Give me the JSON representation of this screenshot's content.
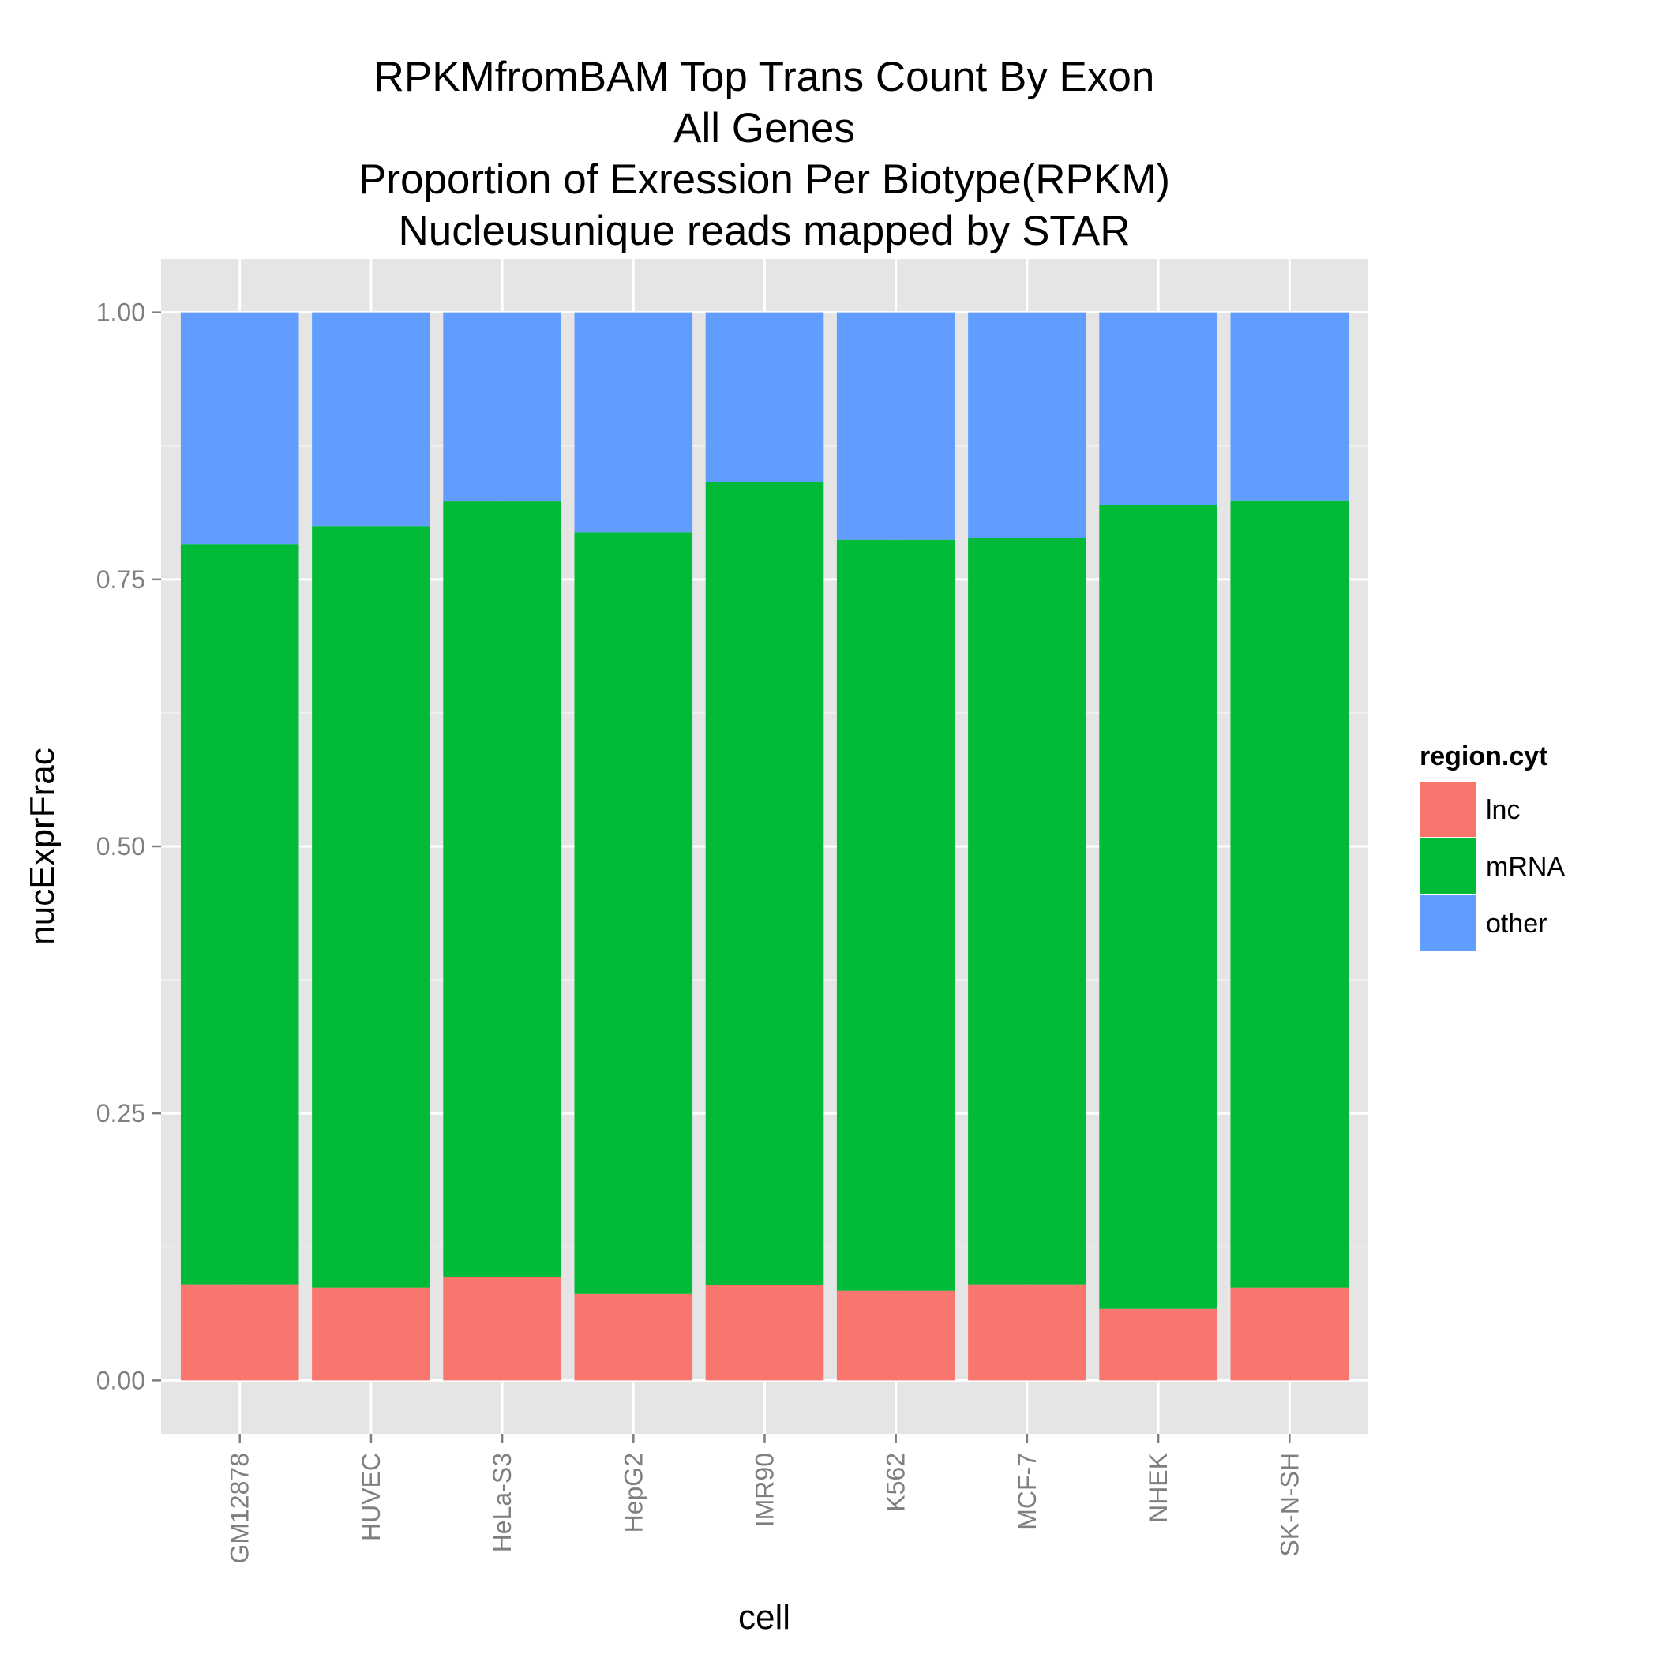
{
  "chart_data": {
    "type": "bar",
    "stacked": true,
    "title": [
      "RPKMfromBAM Top Trans Count By Exon",
      "All Genes",
      "Proportion of Exression Per Biotype(RPKM)",
      "Nucleusunique reads mapped by STAR"
    ],
    "xlabel": "cell",
    "ylabel": "nucExprFrac",
    "ylim": [
      -0.05,
      1.05
    ],
    "yticks": [
      0.0,
      0.25,
      0.5,
      0.75,
      1.0
    ],
    "ytick_labels": [
      "0.00",
      "0.25",
      "0.50",
      "0.75",
      "1.00"
    ],
    "grid": true,
    "categories": [
      "GM12878",
      "HUVEC",
      "HeLa-S3",
      "HepG2",
      "IMR90",
      "K562",
      "MCF-7",
      "NHEK",
      "SK-N-SH"
    ],
    "series": [
      {
        "name": "lnc",
        "color": "#F8766D",
        "values": [
          0.09,
          0.087,
          0.097,
          0.081,
          0.089,
          0.084,
          0.09,
          0.067,
          0.087
        ]
      },
      {
        "name": "mRNA",
        "color": "#00BA38",
        "values": [
          0.693,
          0.713,
          0.726,
          0.713,
          0.752,
          0.703,
          0.699,
          0.753,
          0.737
        ]
      },
      {
        "name": "other",
        "color": "#619CFF",
        "values": [
          0.217,
          0.2,
          0.177,
          0.206,
          0.159,
          0.213,
          0.211,
          0.18,
          0.176
        ]
      }
    ],
    "legend": {
      "title": "region.cyt",
      "position": "right",
      "labels": [
        "lnc",
        "mRNA",
        "other"
      ]
    }
  }
}
